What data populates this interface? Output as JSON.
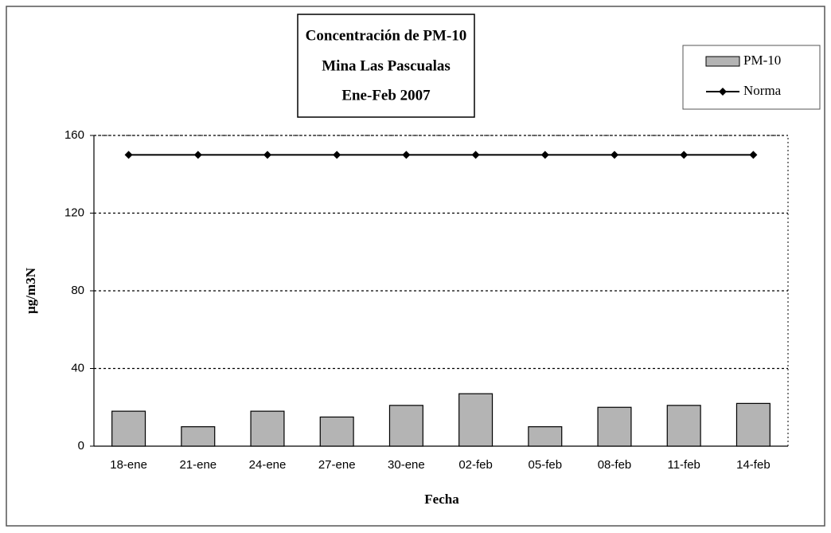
{
  "chart_data": {
    "type": "bar",
    "title": [
      "Concentración de PM-10",
      "Mina Las Pascualas",
      "Ene-Feb 2007"
    ],
    "xlabel": "Fecha",
    "ylabel": "µg/m3N",
    "categories": [
      "18-ene",
      "21-ene",
      "24-ene",
      "27-ene",
      "30-ene",
      "02-feb",
      "05-feb",
      "08-feb",
      "11-feb",
      "14-feb"
    ],
    "series": [
      {
        "name": "PM-10",
        "type": "bar",
        "color": "#b4b4b4",
        "values": [
          18,
          10,
          18,
          15,
          21,
          27,
          10,
          20,
          21,
          22
        ]
      },
      {
        "name": "Norma",
        "type": "line",
        "color": "#000000",
        "values": [
          150,
          150,
          150,
          150,
          150,
          150,
          150,
          150,
          150,
          150
        ]
      }
    ],
    "ylim": [
      0,
      160
    ],
    "yticks": [
      0,
      40,
      80,
      120,
      160
    ],
    "grid": true,
    "legend": "top-right"
  }
}
